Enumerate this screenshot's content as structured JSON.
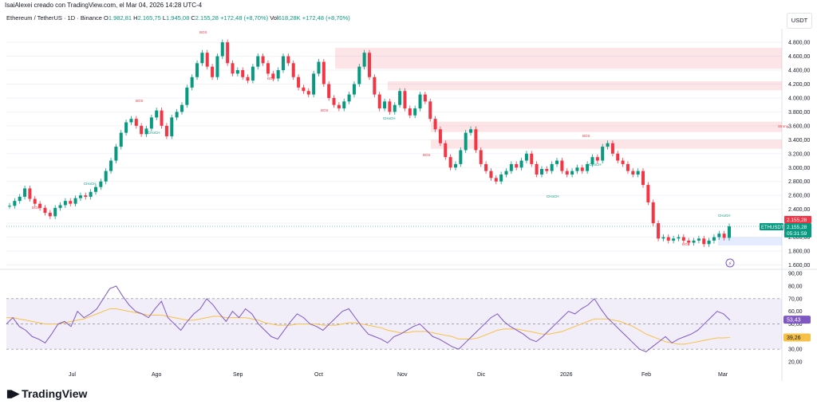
{
  "caption": "IsaiAlexei creado con TradingView.com, el Mar 04, 2026 14:28 UTC-4",
  "symbol": {
    "name": "Ethereum / TetherUS · 1D · Binance",
    "open_label": "O",
    "open": "1.982,81",
    "high_label": "H",
    "high": "2.165,75",
    "low_label": "L",
    "low": "1.945,08",
    "close_label": "C",
    "close": "2.155,28",
    "change": "+172,48 (+8,70%)",
    "vol_label": "Vol",
    "vol": "618,28K",
    "vol_change": "+172,48 (+8,70%)"
  },
  "currency": "USDT",
  "logo_text": "TradingView",
  "colors": {
    "up": "#089981",
    "down": "#f23645",
    "rsi": "#7e57c2",
    "rsi_ma": "#f7c046",
    "zone": "#f23645",
    "demand": "#2962ff"
  },
  "chart_data": {
    "type": "candlestick",
    "x_ticks": [
      "Jul",
      "Ago",
      "Sep",
      "Oct",
      "Nov",
      "Dic",
      "2026",
      "Feb",
      "Mar"
    ],
    "y_ticks": [
      "4.800,00",
      "4.600,00",
      "4.400,00",
      "4.200,00",
      "4.000,00",
      "3.800,00",
      "3.600,00",
      "3.400,00",
      "3.200,00",
      "3.000,00",
      "2.800,00",
      "2.600,00",
      "2.400,00",
      "2.200,00",
      "2.000,00",
      "1.800,00",
      "1.600,00"
    ],
    "ylim": [
      1560,
      4950
    ],
    "price_path": [
      2450,
      2520,
      2580,
      2700,
      2550,
      2480,
      2420,
      2350,
      2300,
      2420,
      2460,
      2520,
      2480,
      2560,
      2600,
      2580,
      2650,
      2720,
      2800,
      2950,
      3100,
      3300,
      3500,
      3650,
      3700,
      3600,
      3480,
      3560,
      3720,
      3820,
      3600,
      3450,
      3720,
      3800,
      3900,
      4150,
      4300,
      4500,
      4650,
      4450,
      4300,
      4600,
      4800,
      4500,
      4350,
      4400,
      4300,
      4250,
      4450,
      4600,
      4500,
      4350,
      4280,
      4400,
      4600,
      4500,
      4300,
      4150,
      4100,
      4050,
      4350,
      4520,
      4200,
      4000,
      3900,
      3850,
      3950,
      4050,
      4200,
      4450,
      4650,
      4300,
      4050,
      3850,
      3950,
      3800,
      3900,
      4100,
      3850,
      3750,
      3850,
      4050,
      3950,
      3700,
      3550,
      3350,
      3150,
      3000,
      3050,
      3250,
      3500,
      3550,
      3250,
      3050,
      2950,
      2850,
      2800,
      2900,
      2950,
      3050,
      3000,
      3100,
      3200,
      3050,
      2900,
      2980,
      2950,
      3050,
      3100,
      2950,
      2900,
      2950,
      3000,
      2950,
      3050,
      3150,
      3100,
      3300,
      3350,
      3200,
      3100,
      3050,
      2950,
      2900,
      2950,
      2750,
      2500,
      2200,
      1980,
      2000,
      1950,
      1980,
      2000,
      1950,
      1920,
      1950,
      1980,
      1900,
      1950,
      2000,
      2050,
      1990,
      2155
    ],
    "price_labels": {
      "last": "2.155,28",
      "ticker": "ETHUSDT",
      "last2": "2.155,28",
      "countdown": "05:31:59"
    },
    "zones": [
      {
        "from": 4420,
        "to": 4720
      },
      {
        "from": 4110,
        "to": 4240
      },
      {
        "from": 3510,
        "to": 3660
      },
      {
        "from": 3270,
        "to": 3400
      }
    ],
    "demand_zone": {
      "from": 1880,
      "to": 2000
    },
    "annotations": [
      "BOS",
      "CHoCH",
      "BOS",
      "CHoCH",
      "BOS",
      "BOS",
      "BOS",
      "CHoCH",
      "BOS",
      "CHoCH",
      "BOS",
      "CHoCH",
      "BOS",
      "CHoCH",
      "Strong"
    ],
    "rsi": {
      "y_ticks": [
        "90,00",
        "80,00",
        "70,00",
        "60,00",
        "50,00",
        "40,00",
        "30,00",
        "20,00"
      ],
      "ylim": [
        15,
        92
      ],
      "overbought": 70,
      "oversold": 30,
      "values": [
        50,
        55,
        48,
        45,
        40,
        38,
        35,
        42,
        50,
        52,
        48,
        60,
        55,
        58,
        62,
        70,
        78,
        80,
        72,
        65,
        60,
        58,
        55,
        62,
        68,
        55,
        50,
        45,
        52,
        58,
        62,
        70,
        65,
        58,
        52,
        60,
        55,
        62,
        58,
        50,
        45,
        40,
        38,
        45,
        52,
        58,
        55,
        50,
        48,
        45,
        50,
        55,
        60,
        62,
        55,
        48,
        42,
        40,
        38,
        35,
        40,
        42,
        45,
        48,
        50,
        45,
        40,
        38,
        35,
        32,
        30,
        35,
        40,
        45,
        50,
        55,
        58,
        52,
        48,
        45,
        42,
        38,
        36,
        40,
        45,
        50,
        55,
        60,
        58,
        62,
        65,
        70,
        62,
        55,
        50,
        45,
        40,
        35,
        30,
        28,
        32,
        36,
        40,
        35,
        38,
        40,
        42,
        45,
        50,
        55,
        60,
        58,
        53
      ],
      "ma": [
        55,
        55,
        54,
        53,
        52,
        51,
        50,
        50,
        50,
        51,
        52,
        53,
        54,
        56,
        58,
        60,
        62,
        62,
        61,
        60,
        59,
        58,
        57,
        57,
        57,
        56,
        55,
        54,
        53,
        53,
        54,
        55,
        56,
        56,
        55,
        55,
        55,
        55,
        54,
        53,
        51,
        50,
        49,
        49,
        49,
        50,
        50,
        50,
        50,
        49,
        49,
        49,
        50,
        51,
        51,
        50,
        49,
        48,
        47,
        45,
        44,
        43,
        43,
        44,
        44,
        44,
        43,
        42,
        41,
        40,
        38,
        38,
        38,
        39,
        41,
        43,
        45,
        46,
        46,
        46,
        45,
        44,
        43,
        42,
        42,
        43,
        44,
        46,
        48,
        50,
        52,
        54,
        54,
        54,
        53,
        52,
        50,
        48,
        45,
        42,
        40,
        38,
        36,
        35,
        34,
        34,
        35,
        36,
        37,
        38,
        39,
        39,
        39.26
      ],
      "last": "53,43",
      "ma_last": "39,26"
    }
  }
}
